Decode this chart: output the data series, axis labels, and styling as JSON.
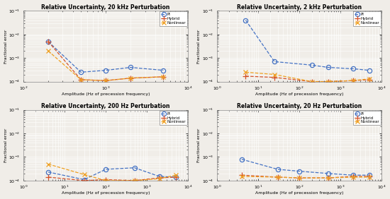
{
  "subplots": [
    {
      "title": "Relative Uncertainty, 20 kHz Perturbation",
      "xlim": [
        100,
        10000
      ],
      "ylim": [
        0.0001,
        0.1
      ],
      "pi": {
        "x": [
          200,
          500,
          1000,
          2000,
          5000
        ],
        "y": [
          0.005,
          0.00025,
          0.0003,
          0.0004,
          0.0003
        ]
      },
      "hybrid": {
        "x": [
          200,
          500,
          1000,
          2000,
          5000
        ],
        "y": [
          0.005,
          0.00012,
          0.00011,
          0.00014,
          0.00016
        ]
      },
      "nonlinear": {
        "x": [
          200,
          500,
          1000,
          2000,
          5000
        ],
        "y": [
          0.002,
          0.00012,
          0.00011,
          0.00014,
          0.00016
        ]
      }
    },
    {
      "title": "Relative Uncertainty, 2 kHz Perturbation",
      "xlim": [
        1,
        10000
      ],
      "ylim": [
        0.0001,
        0.1
      ],
      "pi": {
        "x": [
          5,
          25,
          200,
          500,
          2000,
          5000
        ],
        "y": [
          0.04,
          0.0007,
          0.0005,
          0.0004,
          0.00035,
          0.0003
        ]
      },
      "hybrid": {
        "x": [
          5,
          25,
          200,
          500,
          2000,
          5000
        ],
        "y": [
          0.00017,
          0.00015,
          0.0001,
          0.0001,
          0.00011,
          0.00012
        ]
      },
      "nonlinear": {
        "x": [
          5,
          25,
          200,
          500,
          2000,
          5000
        ],
        "y": [
          0.00025,
          0.0002,
          0.0001,
          0.0001,
          0.00011,
          0.00013
        ]
      }
    },
    {
      "title": "Relative Uncertainty, 200 Hz Perturbation",
      "xlim": [
        1,
        10000
      ],
      "ylim": [
        0.0001,
        0.1
      ],
      "pi": {
        "x": [
          4,
          30,
          100,
          500,
          2000,
          5000
        ],
        "y": [
          0.00023,
          0.00011,
          0.0003,
          0.00035,
          0.00015,
          0.00014
        ]
      },
      "hybrid": {
        "x": [
          4,
          30,
          100,
          500,
          2000,
          5000
        ],
        "y": [
          0.00014,
          0.0001,
          0.00011,
          0.0001,
          0.00013,
          0.00014
        ]
      },
      "nonlinear": {
        "x": [
          4,
          30,
          100,
          500,
          2000,
          5000
        ],
        "y": [
          0.0005,
          0.00018,
          0.0001,
          0.0001,
          0.00012,
          0.00017
        ]
      }
    },
    {
      "title": "Relative Uncertainty, 20 Hz Perturbation",
      "xlim": [
        1,
        10000
      ],
      "ylim": [
        0.0001,
        0.1
      ],
      "pi": {
        "x": [
          4,
          30,
          100,
          500,
          2000,
          5000
        ],
        "y": [
          0.0008,
          0.0003,
          0.00025,
          0.0002,
          0.00017,
          0.00017
        ]
      },
      "hybrid": {
        "x": [
          4,
          30,
          100,
          500,
          2000,
          5000
        ],
        "y": [
          0.00017,
          0.00014,
          0.00013,
          0.00013,
          0.00015,
          0.00015
        ]
      },
      "nonlinear": {
        "x": [
          4,
          30,
          100,
          500,
          2000,
          5000
        ],
        "y": [
          0.00015,
          0.00014,
          0.00013,
          0.00013,
          0.00014,
          0.00014
        ]
      }
    }
  ],
  "pi_color": "#4472C4",
  "hybrid_color": "#D4522A",
  "nonlinear_color": "#EFA020",
  "xlabel": "Amplitude (Hz of precession frequency)",
  "ylabel": "Fractional error",
  "bg_color": "#F0EDE8",
  "fig_bg": "#F0EDE8"
}
